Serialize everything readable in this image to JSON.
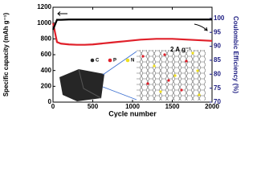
{
  "chart_data": {
    "type": "line",
    "y_label": "Specific capacity (mAh g⁻¹)",
    "y2_label": "Coulombic Efficiency (%)",
    "x_label": "Cycle number",
    "annotation": "2 A g⁻¹",
    "inset_legend": [
      {
        "label": "C",
        "color": "#2a2a2a"
      },
      {
        "label": "P",
        "color": "#e0202a"
      },
      {
        "label": "N",
        "color": "#f0e020"
      }
    ],
    "x": [
      1,
      50,
      100,
      200,
      300,
      400,
      500,
      600,
      700,
      800,
      900,
      1000,
      1100,
      1200,
      1300,
      1400,
      1500,
      1600,
      1700,
      1800,
      1900,
      2000
    ],
    "series": [
      {
        "color": "#e0202a",
        "values": [
          1000,
          760,
          740,
          730,
          725,
          725,
          730,
          740,
          750,
          760,
          770,
          780,
          790,
          795,
          800,
          800,
          800,
          795,
          790,
          785,
          780,
          775
        ]
      },
      {
        "color": "#000000",
        "axis": "y2",
        "values": [
          96,
          99.5,
          99.5,
          99.6,
          99.6,
          99.6,
          99.6,
          99.6,
          99.6,
          99.6,
          99.6,
          99.6,
          99.6,
          99.6,
          99.6,
          99.6,
          99.6,
          99.6,
          99.6,
          99.6,
          99.6,
          99.6
        ]
      }
    ],
    "xlim": [
      0,
      2000
    ],
    "xticks": [
      0,
      500,
      1000,
      1500,
      2000
    ],
    "ylim": [
      0,
      1200
    ],
    "yticks": [
      0,
      200,
      400,
      600,
      800,
      1000,
      1200
    ],
    "y2lim": [
      70,
      104
    ],
    "y2ticks": [
      70,
      75,
      80,
      85,
      90,
      95,
      100
    ],
    "y2_color": "#1a1a80"
  }
}
